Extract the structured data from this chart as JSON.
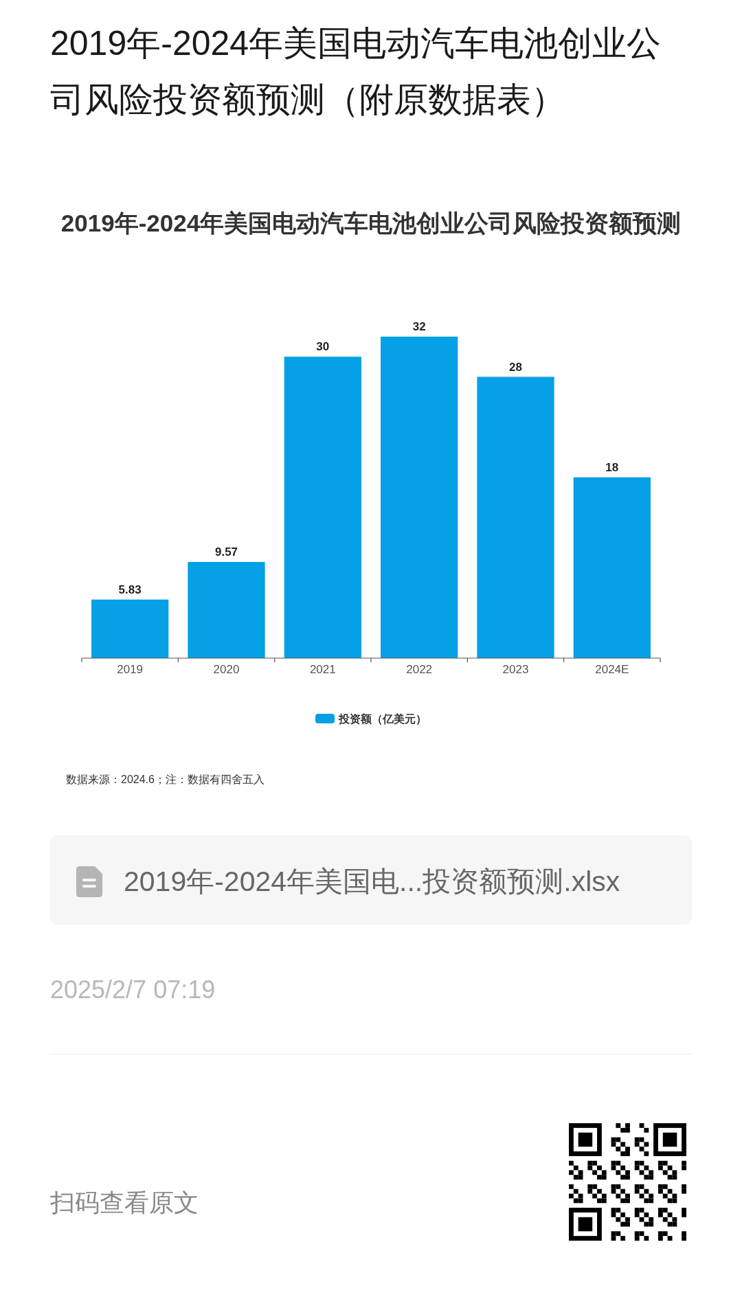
{
  "chart_data": {
    "type": "bar",
    "title": "2019年-2024年美国电动汽车电池创业公司风险投资额预测（附原数据表）",
    "subtitle": "2019年-2024年美国电动汽车电池创业公司风险投资额预测",
    "categories": [
      "2019",
      "2020",
      "2021",
      "2022",
      "2023",
      "2024E"
    ],
    "series": [
      {
        "name": "投资额（亿美元）",
        "color": "#05a0e6",
        "values": [
          5.83,
          9.57,
          30,
          32,
          28,
          18
        ]
      }
    ],
    "data_labels": true,
    "legend": "bottom",
    "annotations": [
      "数据来源：2024.6；注：数据有四舍五入",
      "2019年-2024年美国电...投资额预测.xlsx",
      "2025/2/7 07:19",
      "扫码查看原文"
    ]
  }
}
